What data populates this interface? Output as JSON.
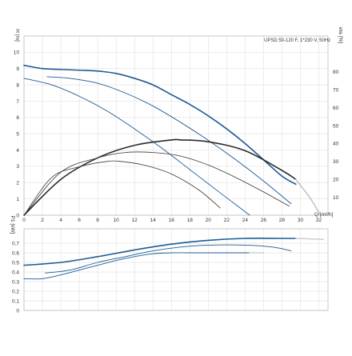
{
  "caption": "UPSD 50-120 F, 1*230 V, 50Hz",
  "colors": {
    "blue": "#1c5a94",
    "dark": "#2a2a2a",
    "thin": "#3a3a3a",
    "gray": "#bdbdbd",
    "grid": "#d8d8d8",
    "fade": "#c0c7d0"
  },
  "chart_data": [
    {
      "type": "line",
      "panel": "head-efficiency",
      "xlabel": "Q [m³/h]",
      "ylabel": "H [m]",
      "y2label": "eta [%]",
      "xlim": [
        0,
        33
      ],
      "ylim": [
        0,
        11
      ],
      "y2lim": [
        0,
        100
      ],
      "xticks": [
        "0",
        "2",
        "4",
        "6",
        "8",
        "10",
        "12",
        "14",
        "16",
        "18",
        "20",
        "22",
        "24",
        "26",
        "28",
        "30",
        "32"
      ],
      "yticks": [
        "0",
        "1",
        "2",
        "3",
        "4",
        "5",
        "6",
        "7",
        "8",
        "9",
        "10"
      ],
      "y2ticks": [
        "10",
        "20",
        "30",
        "40",
        "50",
        "60",
        "70",
        "80"
      ],
      "series": [
        {
          "role": "head",
          "axis": "left",
          "style": "blue-thick",
          "x": [
            0,
            2,
            4,
            6,
            8,
            10,
            12,
            14,
            16,
            18,
            20,
            22,
            24,
            26,
            28,
            29.5
          ],
          "y": [
            9.2,
            9.0,
            8.95,
            8.9,
            8.85,
            8.7,
            8.4,
            8.0,
            7.4,
            6.8,
            6.1,
            5.3,
            4.4,
            3.4,
            2.4,
            1.9
          ]
        },
        {
          "role": "head",
          "axis": "left",
          "style": "blue",
          "x": [
            2.5,
            5,
            8,
            11,
            14,
            17,
            20,
            23,
            26,
            29
          ],
          "y": [
            8.5,
            8.4,
            8.1,
            7.5,
            6.7,
            5.7,
            4.6,
            3.4,
            2.1,
            0.7
          ]
        },
        {
          "role": "head",
          "axis": "left",
          "style": "blue",
          "x": [
            0,
            3,
            6,
            9,
            12,
            15,
            18,
            21,
            24.5
          ],
          "y": [
            8.4,
            8.0,
            7.3,
            6.4,
            5.3,
            4.1,
            2.8,
            1.5,
            0
          ]
        },
        {
          "role": "efficiency",
          "axis": "right",
          "style": "dark-thick",
          "x": [
            0,
            4,
            8,
            12,
            16,
            17,
            20,
            24,
            28,
            29.5
          ],
          "y": [
            0,
            20,
            32,
            39,
            42,
            42,
            41,
            36,
            25,
            20
          ]
        },
        {
          "role": "efficiency",
          "axis": "right",
          "style": "dark",
          "x": [
            0,
            4,
            8,
            11,
            14,
            17,
            20,
            23,
            26,
            28.8
          ],
          "y": [
            0,
            24,
            32,
            35,
            35,
            33,
            28,
            21,
            13,
            5
          ]
        },
        {
          "role": "efficiency",
          "axis": "right",
          "style": "dark",
          "x": [
            0,
            3,
            6,
            9,
            10.5,
            13,
            16,
            19,
            21.3
          ],
          "y": [
            0,
            21,
            27,
            30,
            30,
            28,
            23,
            14,
            4
          ]
        },
        {
          "role": "efficiency-extension",
          "axis": "right",
          "style": "gray",
          "x": [
            29.5,
            31,
            32.2
          ],
          "y": [
            20,
            10,
            0
          ]
        }
      ]
    },
    {
      "type": "line",
      "panel": "power",
      "ylabel": "P1 [kW]",
      "xlim": [
        0,
        33
      ],
      "ylim": [
        0,
        0.85
      ],
      "yticks": [
        "0",
        "0.1",
        "0.2",
        "0.3",
        "0.4",
        "0.5",
        "0.6",
        "0.7"
      ],
      "series": [
        {
          "role": "power",
          "style": "blue-thick",
          "x": [
            0,
            4,
            8,
            12,
            16,
            20,
            24,
            28,
            29.5
          ],
          "y": [
            0.47,
            0.5,
            0.56,
            0.63,
            0.69,
            0.73,
            0.75,
            0.75,
            0.75
          ]
        },
        {
          "role": "power-extension",
          "style": "fade",
          "x": [
            29.5,
            32.5
          ],
          "y": [
            0.75,
            0.74
          ]
        },
        {
          "role": "power",
          "style": "blue",
          "x": [
            2.3,
            5,
            8,
            11,
            14,
            17,
            20,
            24,
            27,
            29
          ],
          "y": [
            0.39,
            0.42,
            0.5,
            0.56,
            0.62,
            0.66,
            0.68,
            0.68,
            0.66,
            0.62
          ]
        },
        {
          "role": "power",
          "style": "blue",
          "x": [
            0,
            2,
            4,
            6,
            8,
            10,
            12,
            14,
            16,
            18,
            20,
            22,
            24.5
          ],
          "y": [
            0.33,
            0.33,
            0.37,
            0.42,
            0.47,
            0.52,
            0.56,
            0.59,
            0.6,
            0.6,
            0.6,
            0.6,
            0.6
          ]
        },
        {
          "role": "power-extension",
          "style": "fade",
          "x": [
            24.5,
            26
          ],
          "y": [
            0.6,
            0.6
          ]
        }
      ]
    }
  ]
}
